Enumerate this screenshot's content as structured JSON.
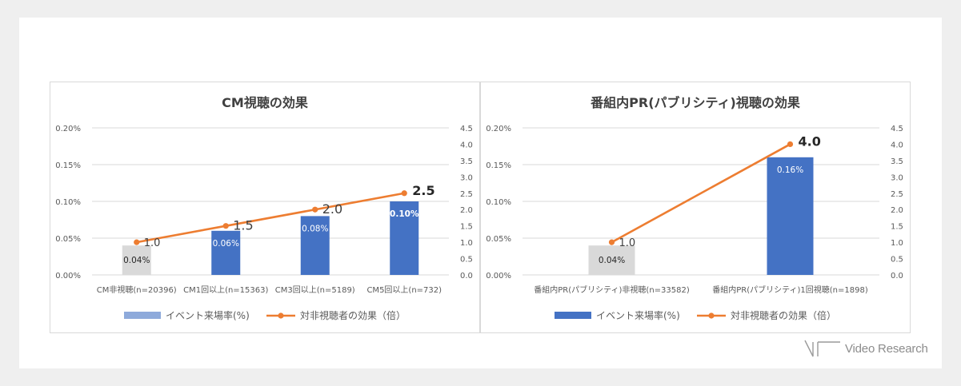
{
  "brand": {
    "name": "Video Research"
  },
  "chart_data": [
    {
      "type": "bar",
      "title": "CM視聴の効果",
      "categories": [
        "CM非視聴(n=20396)",
        "CM1回以上(n=15363)",
        "CM3回以上(n=5189)",
        "CM5回以上(n=732)"
      ],
      "series": [
        {
          "name": "イベント来場率(%)",
          "kind": "bar",
          "axis": "left",
          "values": [
            0.04,
            0.06,
            0.08,
            0.1
          ],
          "labels": [
            "0.04%",
            "0.06%",
            "0.08%",
            "0.10%"
          ],
          "colors": [
            "#d9d9d9",
            "#4472c4",
            "#4472c4",
            "#4472c4"
          ]
        },
        {
          "name": "対非視聴者の効果（倍）",
          "kind": "line",
          "axis": "right",
          "values": [
            1.0,
            1.5,
            2.0,
            2.5
          ],
          "labels": [
            "1.0",
            "1.5",
            "2.0",
            "2.5"
          ],
          "color": "#ed7d31"
        }
      ],
      "y_left": {
        "min": 0,
        "max": 0.2,
        "ticks": [
          "0.00%",
          "0.05%",
          "0.10%",
          "0.15%",
          "0.20%"
        ]
      },
      "y_right": {
        "min": 0,
        "max": 4.5,
        "ticks": [
          "0.0",
          "0.5",
          "1.0",
          "1.5",
          "2.0",
          "2.5",
          "3.0",
          "3.5",
          "4.0",
          "4.5"
        ]
      },
      "legend": {
        "position": "bottom",
        "bar_swatch": "#8eaadb"
      },
      "grid": true
    },
    {
      "type": "bar",
      "title": "番組内PR(パブリシティ)視聴の効果",
      "categories": [
        "番組内PR(パブリシティ)非視聴(n=33582)",
        "番組内PR(パブリシティ)1回視聴(n=1898)"
      ],
      "series": [
        {
          "name": "イベント来場率(%)",
          "kind": "bar",
          "axis": "left",
          "values": [
            0.04,
            0.16
          ],
          "labels": [
            "0.04%",
            "0.16%"
          ],
          "colors": [
            "#d9d9d9",
            "#4472c4"
          ]
        },
        {
          "name": "対非視聴者の効果（倍）",
          "kind": "line",
          "axis": "right",
          "values": [
            1.0,
            4.0
          ],
          "labels": [
            "1.0",
            "4.0"
          ],
          "color": "#ed7d31"
        }
      ],
      "y_left": {
        "min": 0,
        "max": 0.2,
        "ticks": [
          "0.00%",
          "0.05%",
          "0.10%",
          "0.15%",
          "0.20%"
        ]
      },
      "y_right": {
        "min": 0,
        "max": 4.5,
        "ticks": [
          "0.0",
          "0.5",
          "1.0",
          "1.5",
          "2.0",
          "2.5",
          "3.0",
          "3.5",
          "4.0",
          "4.5"
        ]
      },
      "legend": {
        "position": "bottom",
        "bar_swatch": "#4472c4"
      },
      "grid": true
    }
  ]
}
